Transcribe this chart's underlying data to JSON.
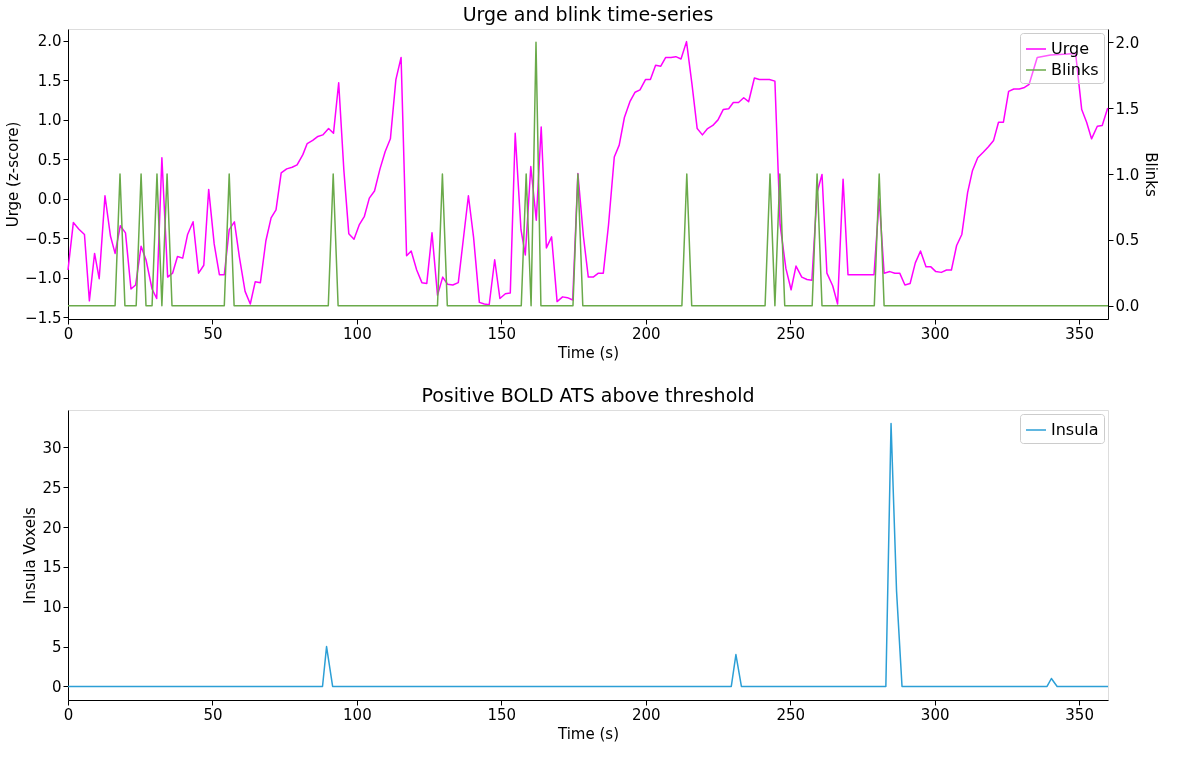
{
  "chart_data": [
    {
      "type": "line",
      "title": "Urge and blink time-series",
      "xlabel": "Time (s)",
      "ylabel": "Urge (z-score)",
      "y2label": "Blinks",
      "legend": "top right",
      "grid": false,
      "xlim": [
        0,
        360
      ],
      "xticks": [
        0,
        50,
        100,
        150,
        200,
        250,
        300,
        350
      ],
      "ylim": [
        -1.52,
        2.15
      ],
      "yticks": [
        {
          "value": -1.5,
          "label": "−1.5"
        },
        {
          "value": -1.0,
          "label": "−1.0"
        },
        {
          "value": -0.5,
          "label": "−0.5"
        },
        {
          "value": 0,
          "label": "0.0"
        },
        {
          "value": 0.5,
          "label": "0.5"
        },
        {
          "value": 1.0,
          "label": "1.0"
        },
        {
          "value": 1.5,
          "label": "1.5"
        },
        {
          "value": 2.0,
          "label": "2.0"
        }
      ],
      "y2lim": [
        -0.1,
        2.1
      ],
      "y2ticks": [
        {
          "value": 0,
          "label": "0.0"
        },
        {
          "value": 0.5,
          "label": "0.5"
        },
        {
          "value": 1.0,
          "label": "1.0"
        },
        {
          "value": 1.5,
          "label": "1.5"
        },
        {
          "value": 2.0,
          "label": "2.0"
        }
      ],
      "series": [
        {
          "name": "Urge",
          "color": "#ff00ff",
          "x": [
            0,
            1.85,
            3.7,
            5.7,
            7.4,
            9.2,
            10.8,
            12.8,
            14.7,
            16.3,
            18.1,
            19.9,
            21.8,
            23.4,
            25.3,
            27,
            29.1,
            30.7,
            32.5,
            34.5,
            36.2,
            37.9,
            39.7,
            41.4,
            43.3,
            45.2,
            47,
            48.7,
            50.6,
            52.4,
            54.1,
            55.8,
            57.6,
            59.3,
            61.3,
            63.1,
            64.8,
            66.6,
            68.5,
            70.3,
            72,
            73.8,
            75.7,
            77.6,
            79.3,
            81.3,
            82.8,
            84.7,
            86.5,
            88.2,
            90.2,
            91.9,
            93.7,
            95.5,
            97.2,
            99,
            100.8,
            102.6,
            104.3,
            106.1,
            108,
            109.8,
            111.6,
            113.5,
            115.3,
            117.2,
            118.8,
            120.7,
            122.5,
            124.2,
            126,
            127.9,
            129.7,
            131.4,
            133.2,
            135.1,
            138.6,
            140.4,
            142.4,
            144.1,
            145.8,
            147.7,
            149.5,
            151.4,
            153.1,
            154.8,
            156.8,
            158.3,
            160.2,
            162.1,
            163.8,
            165.6,
            167.4,
            169.3,
            171.2,
            172.9,
            174.7,
            176.5,
            178.4,
            180.1,
            181.8,
            183.6,
            185.3,
            187.1,
            189.1,
            190.8,
            192.6,
            194.5,
            196.3,
            198,
            199.9,
            201.6,
            203.4,
            205.2,
            206.9,
            208.7,
            210.4,
            212.2,
            214.1,
            216,
            217.8,
            219.6,
            221.4,
            223.2,
            225,
            226.8,
            228.7,
            230.3,
            232.1,
            233.9,
            235.6,
            237.6,
            239.3,
            241.1,
            242.8,
            244.7,
            246.5,
            248.5,
            250.3,
            252,
            254,
            255.8,
            257.5,
            259.3,
            261,
            262.7,
            264.7,
            266.4,
            268.3,
            270,
            279,
            280.8,
            282.5,
            284.5,
            286.2,
            287.9,
            289.7,
            291.5,
            293.3,
            295.1,
            297,
            298.7,
            300.4,
            302.3,
            304.1,
            305.8,
            307.6,
            309.4,
            311.4,
            313.1,
            314.9,
            316.8,
            318.6,
            320.4,
            322.1,
            323.8,
            325.6,
            327.4,
            329.3,
            331.1,
            332.7,
            335.5,
            340.1,
            344.7,
            348.8,
            350.9,
            352.6,
            354.3,
            356.3,
            358,
            359.9
          ],
          "values": [
            -0.9,
            -0.3,
            -0.38,
            -0.45,
            -1.29,
            -0.69,
            -1.01,
            0.04,
            -0.47,
            -0.69,
            -0.34,
            -0.43,
            -1.14,
            -1.09,
            -0.6,
            -0.77,
            -1.14,
            -1.26,
            0.52,
            -0.99,
            -0.94,
            -0.73,
            -0.75,
            -0.45,
            -0.29,
            -0.94,
            -0.84,
            0.12,
            -0.57,
            -0.96,
            -0.96,
            -0.39,
            -0.29,
            -0.73,
            -1.17,
            -1.33,
            -1.05,
            -1.06,
            -0.53,
            -0.24,
            -0.14,
            0.33,
            0.38,
            0.4,
            0.43,
            0.56,
            0.7,
            0.74,
            0.79,
            0.81,
            0.89,
            0.83,
            1.47,
            0.36,
            -0.44,
            -0.51,
            -0.33,
            -0.22,
            0.01,
            0.1,
            0.38,
            0.6,
            0.76,
            1.51,
            1.79,
            -0.72,
            -0.66,
            -0.9,
            -1.06,
            -1.07,
            -0.43,
            -1.22,
            -0.99,
            -1.08,
            -1.09,
            -1.06,
            0.04,
            -0.49,
            -1.31,
            -1.33,
            -1.34,
            -0.77,
            -1.26,
            -1.2,
            -1.19,
            0.83,
            -0.39,
            -0.71,
            0.41,
            -0.27,
            0.91,
            -0.62,
            -0.48,
            -1.3,
            -1.24,
            -1.25,
            -1.28,
            0.32,
            -0.47,
            -0.99,
            -0.99,
            -0.94,
            -0.94,
            -0.33,
            0.53,
            0.68,
            1.03,
            1.23,
            1.35,
            1.38,
            1.51,
            1.51,
            1.69,
            1.68,
            1.79,
            1.79,
            1.8,
            1.77,
            1.99,
            1.45,
            0.89,
            0.81,
            0.89,
            0.93,
            1.0,
            1.13,
            1.14,
            1.22,
            1.22,
            1.28,
            1.23,
            1.53,
            1.51,
            1.51,
            1.51,
            1.49,
            -0.33,
            -0.88,
            -1.15,
            -0.85,
            -0.99,
            -1.02,
            -1.03,
            0.08,
            0.31,
            -0.94,
            -1.1,
            -1.33,
            0.25,
            -0.96,
            -0.96,
            0.0,
            -0.94,
            -0.92,
            -0.94,
            -0.94,
            -1.09,
            -1.07,
            -0.81,
            -0.66,
            -0.86,
            -0.86,
            -0.92,
            -0.93,
            -0.9,
            -0.9,
            -0.59,
            -0.45,
            0.08,
            0.36,
            0.52,
            0.59,
            0.66,
            0.74,
            0.97,
            0.97,
            1.36,
            1.39,
            1.39,
            1.41,
            1.45,
            1.79,
            1.82,
            1.83,
            1.84,
            1.13,
            0.97,
            0.76,
            0.92,
            0.93,
            1.15
          ]
        },
        {
          "name": "Blinks",
          "color": "#6aaa4a",
          "axis": "y2",
          "x": [
            0,
            16.3,
            18,
            19.7,
            23.6,
            25.3,
            27,
            29.1,
            30.8,
            32.5,
            34.3,
            36,
            54.1,
            55.8,
            57.5,
            90.1,
            91.8,
            93.5,
            127.9,
            129.6,
            131.3,
            156.9,
            158.6,
            160.3,
            162,
            163.7,
            174.8,
            176.5,
            178.2,
            212.5,
            214.2,
            215.9,
            241.3,
            243,
            244.7,
            246.4,
            248.1,
            257.6,
            259.3,
            261,
            279.1,
            280.8,
            282.5,
            360
          ],
          "values": [
            0,
            0,
            1,
            0,
            0,
            1,
            0,
            0,
            1,
            0,
            1,
            0,
            0,
            1,
            0,
            0,
            1,
            0,
            0,
            1,
            0,
            0,
            1,
            0,
            2,
            0,
            0,
            1,
            0,
            0,
            1,
            0,
            0,
            1,
            0,
            1,
            0,
            0,
            1,
            0,
            0,
            1,
            0,
            0
          ]
        }
      ]
    },
    {
      "type": "line",
      "title": "Positive BOLD ATS above threshold",
      "xlabel": "Time (s)",
      "ylabel": "Insula Voxels",
      "legend": "top right",
      "grid": false,
      "xlim": [
        0,
        360
      ],
      "xticks": [
        0,
        50,
        100,
        150,
        200,
        250,
        300,
        350
      ],
      "ylim": [
        -1.7,
        34.7
      ],
      "yticks": [
        0,
        5,
        10,
        15,
        20,
        25,
        30
      ],
      "series": [
        {
          "name": "Insula",
          "color": "#2c9fd6",
          "x": [
            0,
            88.1,
            89.5,
            91.6,
            229.6,
            231.2,
            233.1,
            283.1,
            284.9,
            286.8,
            288.7,
            338.9,
            340.4,
            342.4,
            360
          ],
          "values": [
            0,
            0,
            5,
            0,
            0,
            4,
            0,
            0,
            33,
            12,
            0,
            0,
            1,
            0,
            0
          ]
        }
      ]
    }
  ]
}
